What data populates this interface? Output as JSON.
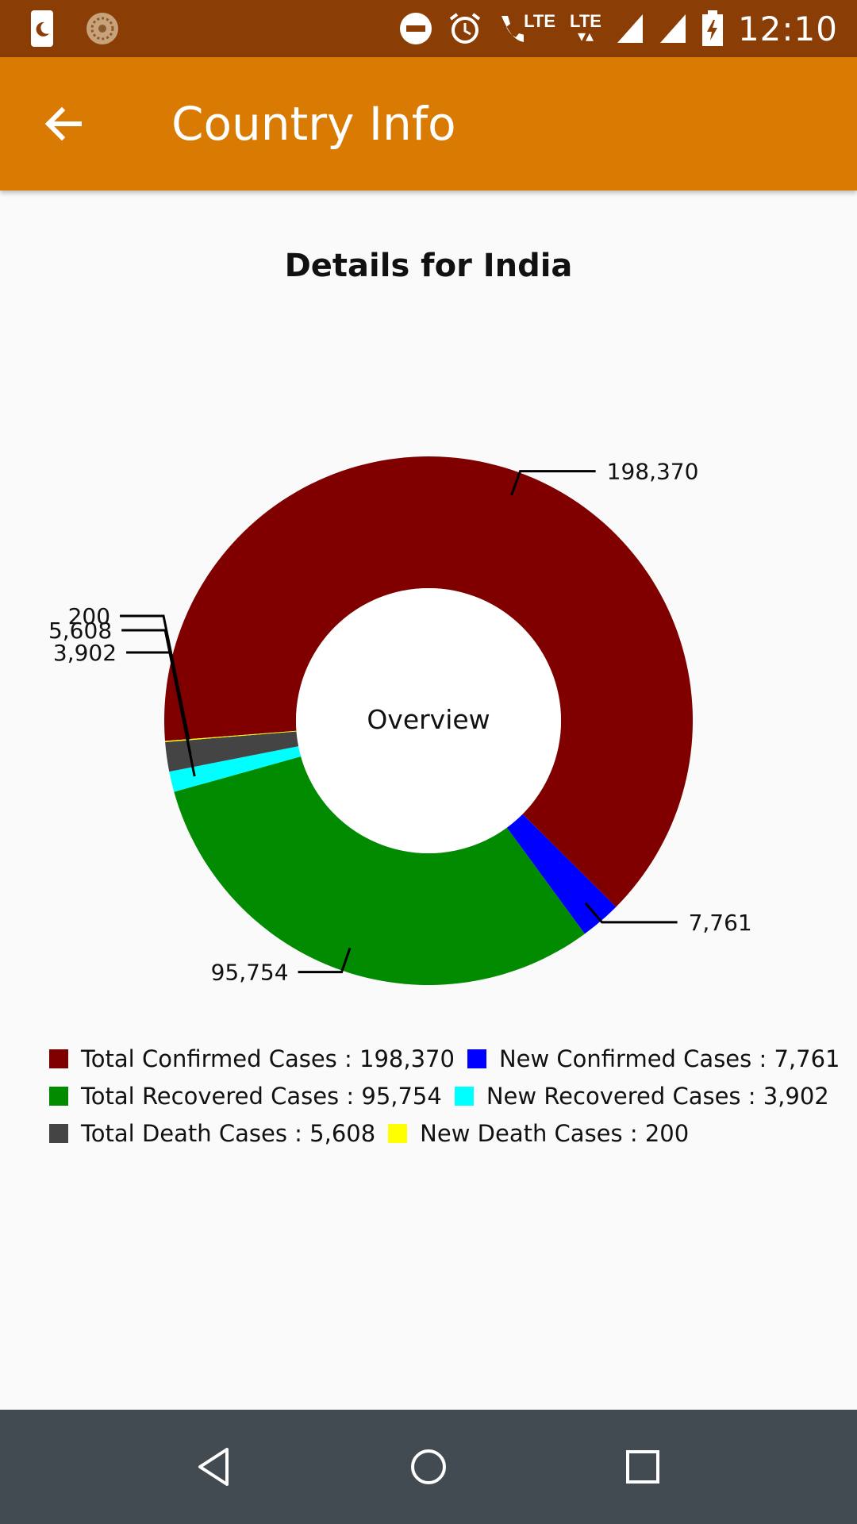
{
  "status_bar": {
    "time": "12:10",
    "lte1": "LTE",
    "lte2": "LTE",
    "icons": [
      "moon-notification-icon",
      "app-notification-icon",
      "do-not-disturb-icon",
      "alarm-icon",
      "volte-call-icon",
      "lte-data-icon",
      "signal-icon",
      "signal-icon",
      "battery-charging-icon"
    ]
  },
  "app_bar": {
    "title": "Country Info",
    "back_icon": "arrow-back-icon",
    "color": "#d97b03"
  },
  "page": {
    "title": "Details for India"
  },
  "chart_data": {
    "type": "pie",
    "style": "donut",
    "center_label": "Overview",
    "slices": [
      {
        "label": "Total Confirmed Cases",
        "value": 198370,
        "display": "198,370",
        "color": "#800000"
      },
      {
        "label": "New Confirmed Cases",
        "value": 7761,
        "display": "7,761",
        "color": "#0000ff"
      },
      {
        "label": "Total Recovered Cases",
        "value": 95754,
        "display": "95,754",
        "color": "#008b00"
      },
      {
        "label": "New Recovered Cases",
        "value": 3902,
        "display": "3,902",
        "color": "#00ffff"
      },
      {
        "label": "Total Death Cases",
        "value": 5608,
        "display": "5,608",
        "color": "#444444"
      },
      {
        "label": "New Death Cases",
        "value": 200,
        "display": "200",
        "color": "#ffff00"
      }
    ]
  },
  "legend": {
    "rows": [
      [
        {
          "text": "Total Confirmed Cases : 198,370",
          "color": "#800000"
        },
        {
          "text": "New Confirmed Cases : 7,761",
          "color": "#0000ff"
        }
      ],
      [
        {
          "text": "Total Recovered Cases : 95,754",
          "color": "#008b00"
        },
        {
          "text": "New Recovered Cases : 3,902",
          "color": "#00ffff"
        }
      ],
      [
        {
          "text": "Total Death Cases : 5,608",
          "color": "#444444"
        },
        {
          "text": "New Death Cases : 200",
          "color": "#ffff00"
        }
      ]
    ]
  },
  "nav_bar": {
    "back_icon": "nav-back-icon",
    "home_icon": "nav-home-icon",
    "recents_icon": "nav-recents-icon"
  }
}
